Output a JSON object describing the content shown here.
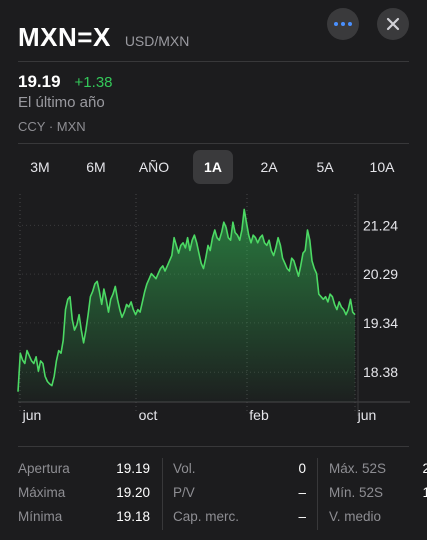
{
  "header": {
    "symbol": "MXN=X",
    "pair": "USD/MXN",
    "more_icon": "ellipsis-icon",
    "close_icon": "close-icon"
  },
  "quote": {
    "price": "19.19",
    "change": "+1.38",
    "period": "El último año",
    "category": "CCY · MXN"
  },
  "tabs": [
    {
      "label": "3M",
      "active": false
    },
    {
      "label": "6M",
      "active": false
    },
    {
      "label": "AÑO",
      "active": false
    },
    {
      "label": "1A",
      "active": true
    },
    {
      "label": "2A",
      "active": false
    },
    {
      "label": "5A",
      "active": false
    },
    {
      "label": "10A",
      "active": false
    }
  ],
  "colors": {
    "positive": "#34c759",
    "line": "#4cd964",
    "background": "#1c1c1e"
  },
  "chart_data": {
    "type": "area",
    "x_tick_labels": [
      "jun",
      "oct",
      "feb",
      "jun"
    ],
    "y_tick_labels": [
      "21.24",
      "20.29",
      "19.34",
      "18.38"
    ],
    "y_ticks": [
      21.24,
      20.29,
      19.34,
      18.38
    ],
    "ylim": [
      17.8,
      21.85
    ],
    "n_points": 150,
    "values": [
      18.0,
      18.75,
      18.62,
      18.55,
      18.8,
      18.7,
      18.6,
      18.55,
      18.68,
      18.4,
      18.6,
      18.55,
      18.3,
      18.2,
      18.15,
      18.12,
      18.3,
      18.6,
      18.8,
      18.75,
      19.0,
      19.6,
      19.8,
      19.85,
      19.4,
      19.2,
      19.3,
      19.5,
      19.2,
      18.95,
      19.2,
      19.5,
      19.85,
      19.95,
      20.1,
      20.15,
      19.95,
      19.7,
      20.0,
      19.8,
      19.55,
      19.8,
      19.9,
      20.05,
      19.8,
      19.6,
      19.45,
      19.55,
      19.7,
      19.65,
      19.75,
      19.6,
      19.5,
      19.6,
      19.55,
      19.75,
      19.95,
      20.1,
      20.2,
      20.3,
      20.25,
      20.2,
      20.3,
      20.4,
      20.45,
      20.35,
      20.45,
      20.55,
      20.65,
      21.0,
      20.85,
      20.7,
      20.85,
      20.9,
      20.8,
      21.0,
      20.75,
      20.95,
      21.05,
      20.9,
      20.7,
      20.5,
      20.4,
      20.6,
      20.85,
      20.75,
      21.0,
      21.15,
      21.0,
      20.95,
      21.1,
      21.3,
      21.2,
      21.0,
      20.95,
      21.3,
      21.1,
      21.05,
      20.95,
      21.15,
      21.55,
      21.3,
      21.05,
      20.9,
      21.05,
      21.0,
      20.9,
      21.0,
      21.05,
      20.9,
      20.85,
      20.95,
      20.75,
      20.65,
      20.8,
      21.0,
      20.85,
      20.6,
      20.5,
      20.4,
      20.35,
      20.6,
      20.55,
      20.4,
      20.25,
      20.45,
      20.7,
      20.75,
      21.15,
      20.95,
      20.55,
      20.4,
      20.3,
      19.9,
      19.85,
      19.8,
      19.85,
      19.75,
      19.9,
      19.85,
      19.7,
      19.6,
      19.75,
      19.65,
      19.6,
      19.5,
      19.6,
      19.8,
      19.55,
      19.5
    ]
  },
  "stats": {
    "col1": [
      {
        "label": "Apertura",
        "value": "19.19"
      },
      {
        "label": "Máxima",
        "value": "19.20"
      },
      {
        "label": "Mínima",
        "value": "19.18"
      }
    ],
    "col2": [
      {
        "label": "Vol.",
        "value": "0"
      },
      {
        "label": "P/V",
        "value": "–"
      },
      {
        "label": "Cap. merc.",
        "value": "–"
      }
    ],
    "col3": [
      {
        "label": "Máx. 52S",
        "value": "2"
      },
      {
        "label": "Mín. 52S",
        "value": "1"
      },
      {
        "label": "V. medio",
        "value": ""
      }
    ]
  }
}
